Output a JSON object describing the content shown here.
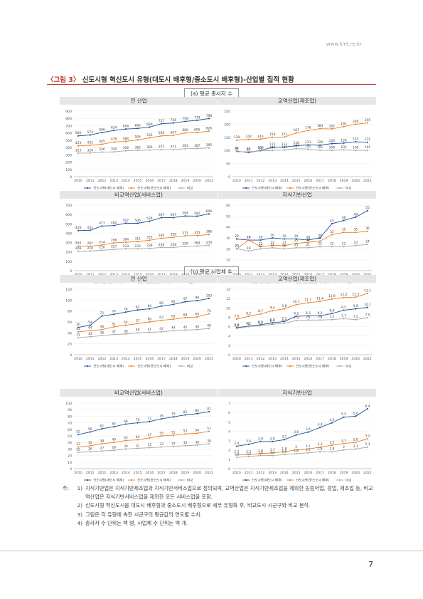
{
  "url": "www.kiet.re.kr",
  "figure": {
    "number": "〈그림 3〉",
    "title": "신도시형 혁신도시 유형(대도시 배후형/중소도시 배후형)-산업별 집적 현황"
  },
  "sections": [
    "(a) 평균 종사자 수",
    "(b) 평균 사업체 수"
  ],
  "legend": {
    "s1": "신도시형(대도시 배후)",
    "s2": "신도시형(중소도시 배후)",
    "s3": "비교"
  },
  "colors": {
    "s1": "#1f4e9c",
    "s2": "#f07d1e",
    "s3": "#a6a6a6"
  },
  "notes": {
    "label": "주:",
    "items": [
      {
        "num": "1)",
        "text": "지식기반업은 지식기반제조업과 지식기반서비스업으로 정의되며, 교역산업은 지식기반제조업을 제외한 농림어업, 광업, 제조업 등, 비교역산업은 지식기반서비스업을 제외한 모든 서비스업을 포함."
      },
      {
        "num": "2)",
        "text": "신도시형 혁신도시를 대도시 배후형과 중소도시 배후형으로 세부 유형화 후, 비교도시 시군구와 비교 분석."
      },
      {
        "num": "3)",
        "text": "그림은 각 유형에 속한 시군구의 평균값의 연도별 수치."
      },
      {
        "num": "4)",
        "text": "종사자 수 단위는 백 명, 사업체 수 단위는 백 개."
      }
    ]
  },
  "page_number": "7",
  "chart_data": [
    {
      "type": "line",
      "title": "전 산업",
      "section": "a",
      "x": [
        "2010",
        "2011",
        "2012",
        "2013",
        "2014",
        "2015",
        "2016",
        "2017",
        "2018",
        "2019",
        "2020",
        "2021"
      ],
      "ylim": [
        0,
        900
      ],
      "yticks": [
        0,
        100,
        200,
        300,
        400,
        500,
        600,
        700,
        800,
        900
      ],
      "series": [
        {
          "name": "신도시형(대도시 배후)",
          "values": [
            560,
            572,
            606,
            634,
            654,
            662,
            680,
            727,
            736,
            759,
            774,
            798
          ]
        },
        {
          "name": "신도시형(중소도시 배후)",
          "values": [
            423,
            431,
            445,
            476,
            484,
            506,
            533,
            560,
            567,
            600,
            605,
            626
          ]
        },
        {
          "name": "비교",
          "values": [
            323,
            324,
            336,
            340,
            356,
            362,
            365,
            371,
            371,
            383,
            387,
            395
          ]
        }
      ]
    },
    {
      "type": "line",
      "title": "교역산업(제조업)",
      "section": "a",
      "x": [
        "2010",
        "2011",
        "2012",
        "2013",
        "2014",
        "2015",
        "2016",
        "2017",
        "2018",
        "2019",
        "2020",
        "2021"
      ],
      "ylim": [
        0,
        250
      ],
      "yticks": [
        0,
        50,
        100,
        150,
        200,
        250
      ],
      "series": [
        {
          "name": "신도시형(대도시 배후)",
          "values": [
            97,
            92,
            100,
            112,
            113,
            118,
            121,
            120,
            126,
            128,
            133,
            131
          ]
        },
        {
          "name": "신도시형(중소도시 배후)",
          "values": [
            139,
            142,
            143,
            150,
            151,
            167,
            176,
            183,
            182,
            191,
            200,
            205
          ]
        },
        {
          "name": "비교",
          "values": [
            95,
            95,
            98,
            100,
            102,
            107,
            105,
            101,
            100,
            102,
            100,
            101
          ]
        }
      ]
    },
    {
      "type": "line",
      "title": "비교역산업(서비스업)",
      "section": "a",
      "x": [
        "2010",
        "2011",
        "2012",
        "2013",
        "2014",
        "2015",
        "2016",
        "2017",
        "2018",
        "2019",
        "2020",
        "2021"
      ],
      "ylim": [
        0,
        700
      ],
      "yticks": [
        0,
        100,
        200,
        300,
        400,
        500,
        600,
        700
      ],
      "series": [
        {
          "name": "신도시형(대도시 배후)",
          "values": [
            428,
            431,
            477,
            482,
            507,
            506,
            528,
            567,
            567,
            584,
            582,
            606
          ]
        },
        {
          "name": "신도시형(중소도시 배후)",
          "values": [
            264,
            261,
            274,
            296,
            304,
            311,
            325,
            346,
            356,
            373,
            375,
            386
          ]
        },
        {
          "name": "비교",
          "values": [
            208,
            210,
            218,
            227,
            233,
            233,
            238,
            248,
            248,
            259,
            264,
            270
          ]
        }
      ]
    },
    {
      "type": "line",
      "title": "지식기반산업",
      "section": "a",
      "x": [
        "2010",
        "2011",
        "2012",
        "2013",
        "2014",
        "2015",
        "2016",
        "2017",
        "2018",
        "2019",
        "2020",
        "2021"
      ],
      "ylim": [
        0,
        60
      ],
      "yticks": [
        0,
        10,
        20,
        30,
        40,
        50,
        60
      ],
      "series": [
        {
          "name": "신도시형(대도시 배후)",
          "values": [
            29,
            28,
            28,
            30,
            29,
            29,
            28,
            30,
            43,
            46,
            49,
            55
          ]
        },
        {
          "name": "신도시형(중소도시 배후)",
          "values": [
            20,
            28,
            22,
            23,
            23,
            25,
            26,
            27,
            33,
            35,
            35,
            36
          ]
        },
        {
          "name": "비교",
          "values": [
            20,
            18,
            20,
            21,
            20,
            21,
            21,
            22,
            22,
            22,
            23,
            24
          ]
        }
      ]
    },
    {
      "type": "line",
      "title": "전 산업",
      "section": "b",
      "x": [
        "2010",
        "2011",
        "2012",
        "2013",
        "2014",
        "2015",
        "2016",
        "2017",
        "2018",
        "2019",
        "2020",
        "2021"
      ],
      "ylim": [
        0,
        120
      ],
      "yticks": [
        0,
        20,
        40,
        60,
        80,
        100,
        120
      ],
      "series": [
        {
          "name": "신도시형(대도시 배후)",
          "values": [
            50,
            54,
            71,
            74,
            78,
            82,
            84,
            89,
            92,
            97,
            99,
            103
          ]
        },
        {
          "name": "신도시형(중소도시 배후)",
          "values": [
            42,
            44,
            46,
            51,
            54,
            57,
            60,
            63,
            65,
            68,
            69,
            75
          ]
        },
        {
          "name": "비교",
          "values": [
            31,
            33,
            35,
            37,
            38,
            40,
            41,
            42,
            44,
            45,
            46,
            48
          ]
        }
      ]
    },
    {
      "type": "line",
      "title": "교역산업(제조업)",
      "section": "b",
      "x": [
        "2010",
        "2011",
        "2012",
        "2013",
        "2014",
        "2015",
        "2016",
        "2017",
        "2018",
        "2019",
        "2020",
        "2021"
      ],
      "ylim": [
        0,
        14
      ],
      "yticks": [
        0,
        2,
        4,
        6,
        8,
        10,
        12,
        14
      ],
      "series": [
        {
          "name": "신도시형(대도시 배후)",
          "values": [
            5.8,
            6.1,
            6.4,
            6.8,
            7.1,
            8.2,
            8.3,
            8.3,
            8.8,
            9.5,
            9.8,
            10.1
          ]
        },
        {
          "name": "신도시형(중소도시 배후)",
          "values": [
            7.6,
            8.2,
            8.7,
            9.4,
            9.8,
            10.7,
            11.1,
            11.4,
            11.9,
            12.2,
            12.3,
            13.1
          ]
        },
        {
          "name": "비교",
          "values": [
            5.6,
            6.0,
            6.2,
            6.5,
            6.7,
            7.3,
            7.4,
            7.4,
            7.5,
            7.7,
            7.5,
            7.9
          ]
        }
      ]
    },
    {
      "type": "line",
      "title": "비교역산업(서비스업)",
      "section": "b",
      "x": [
        "2010",
        "2011",
        "2012",
        "2013",
        "2014",
        "2015",
        "2016",
        "2017",
        "2018",
        "2019",
        "2020",
        "2021"
      ],
      "ylim": [
        0,
        100
      ],
      "yticks": [
        0,
        10,
        20,
        30,
        40,
        50,
        60,
        70,
        80,
        90,
        100
      ],
      "series": [
        {
          "name": "신도시형(대도시 배후)",
          "values": [
            52,
            56,
            61,
            64,
            68,
            70,
            72,
            76,
            79,
            82,
            84,
            87
          ]
        },
        {
          "name": "신도시형(중소도시 배후)",
          "values": [
            33,
            35,
            38,
            40,
            43,
            44,
            47,
            50,
            51,
            53,
            54,
            57
          ]
        },
        {
          "name": "비교",
          "values": [
            25,
            26,
            27,
            28,
            30,
            31,
            32,
            33,
            34,
            35,
            36,
            38
          ]
        }
      ]
    },
    {
      "type": "line",
      "title": "지식기반산업",
      "section": "b",
      "x": [
        "2010",
        "2011",
        "2012",
        "2013",
        "2014",
        "2015",
        "2016",
        "2017",
        "2018",
        "2019",
        "2020",
        "2021"
      ],
      "ylim": [
        0,
        7
      ],
      "yticks": [
        0,
        1,
        2,
        3,
        4,
        5,
        6,
        7
      ],
      "series": [
        {
          "name": "신도시형(대도시 배후)",
          "values": [
            2.4,
            2.6,
            2.9,
            2.9,
            3.1,
            3.6,
            3.9,
            4.4,
            4.9,
            5.5,
            5.6,
            6.4
          ]
        },
        {
          "name": "신도시형(중소도시 배후)",
          "values": [
            1.5,
            1.5,
            1.6,
            1.7,
            1.8,
            2.0,
            2.1,
            2.3,
            2.5,
            2.7,
            2.8,
            3.2
          ]
        },
        {
          "name": "비교",
          "values": [
            1.2,
            1.3,
            1.4,
            1.4,
            1.5,
            1.6,
            1.7,
            1.8,
            1.8,
            2.0,
            2.1,
            2.3
          ]
        }
      ]
    }
  ]
}
